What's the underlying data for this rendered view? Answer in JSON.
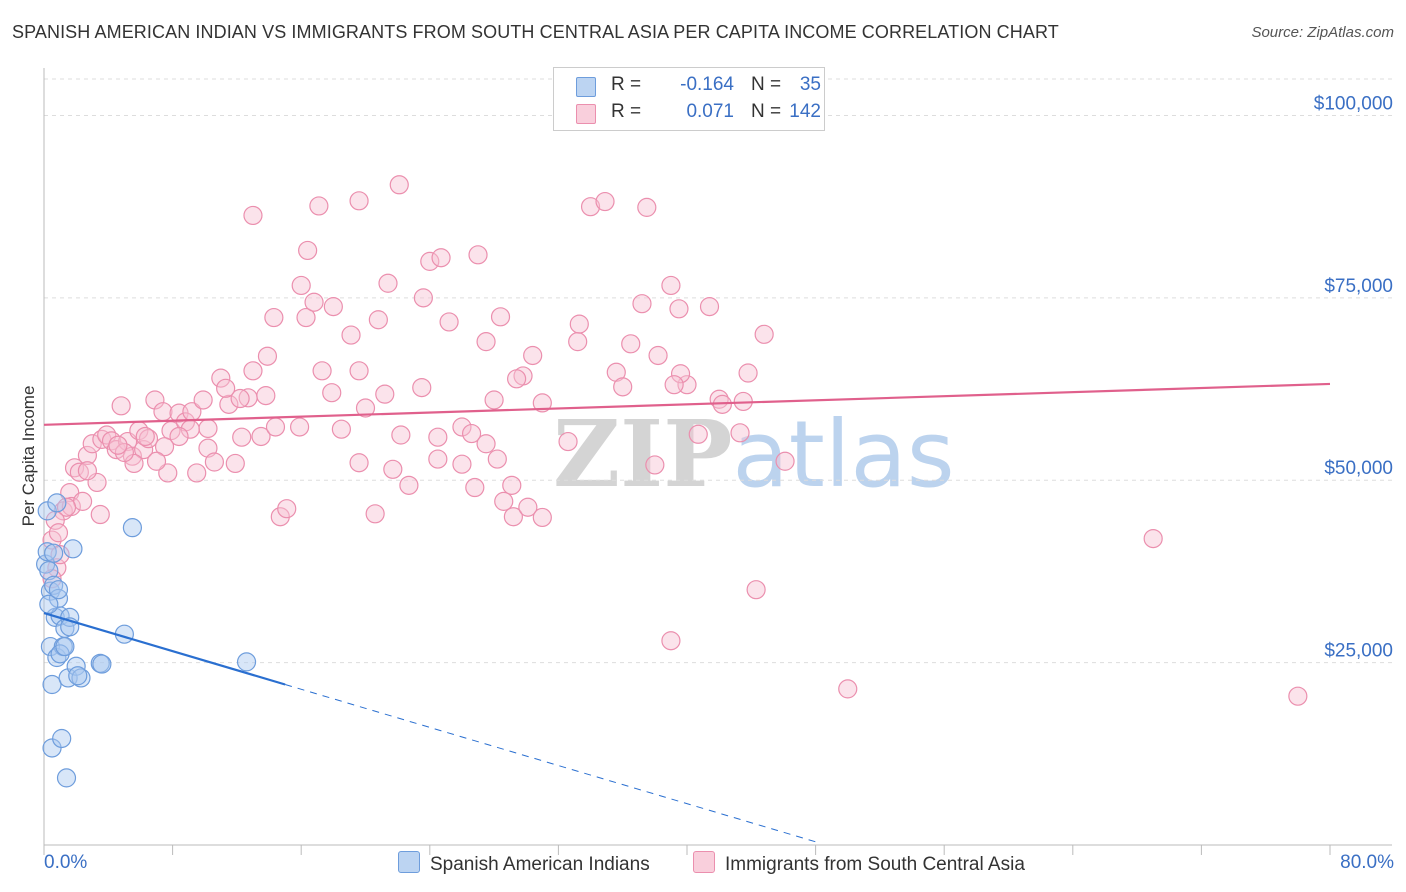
{
  "header": {
    "title": "SPANISH AMERICAN INDIAN VS IMMIGRANTS FROM SOUTH CENTRAL ASIA PER CAPITA INCOME CORRELATION CHART",
    "source": "Source: ZipAtlas.com"
  },
  "legend": {
    "rows": [
      {
        "r_label": "R =",
        "r_value": "-0.164",
        "n_label": "N =",
        "n_value": "35"
      },
      {
        "r_label": "R =",
        "r_value": "0.071",
        "n_label": "N =",
        "n_value": "142"
      }
    ]
  },
  "watermark": {
    "zip": "ZIP",
    "atlas": "atlas"
  },
  "colors": {
    "blue_fill": "#a9c8ef",
    "blue_stroke": "#6e9ddc",
    "blue_line": "#2a6fd0",
    "pink_fill": "#f7c1d2",
    "pink_stroke": "#eb8fae",
    "pink_line": "#e0608c",
    "tick_text": "#3a6fc4",
    "grid": "#dddddd"
  },
  "chart_data": {
    "type": "scatter",
    "title": "SPANISH AMERICAN INDIAN VS IMMIGRANTS FROM SOUTH CENTRAL ASIA PER CAPITA INCOME CORRELATION CHART",
    "xlabel": "",
    "ylabel": "Per Capita Income",
    "xlim": [
      0,
      80
    ],
    "ylim": [
      0,
      105000
    ],
    "x_tick_labels": [
      "0.0%",
      "80.0%"
    ],
    "y_ticks": [
      25000,
      50000,
      75000,
      100000
    ],
    "y_tick_labels": [
      "$25,000",
      "$50,000",
      "$75,000",
      "$100,000"
    ],
    "grid": true,
    "series": [
      {
        "name": "Spanish American Indians",
        "color": "blue",
        "r": -0.164,
        "n": 35,
        "trend": {
          "x0": 0,
          "y0": 31800,
          "x1": 15,
          "y1": 22000,
          "dash_to_x": 48
        },
        "points": [
          [
            0.1,
            38500
          ],
          [
            0.2,
            45800
          ],
          [
            0.2,
            40200
          ],
          [
            0.3,
            37600
          ],
          [
            0.4,
            34800
          ],
          [
            0.4,
            27200
          ],
          [
            0.5,
            22000
          ],
          [
            0.5,
            13300
          ],
          [
            0.6,
            35600
          ],
          [
            0.7,
            31200
          ],
          [
            0.8,
            46900
          ],
          [
            0.8,
            25700
          ],
          [
            0.9,
            33800
          ],
          [
            1.0,
            31400
          ],
          [
            1.1,
            14600
          ],
          [
            1.2,
            27200
          ],
          [
            1.3,
            29700
          ],
          [
            1.4,
            9200
          ],
          [
            1.5,
            22900
          ],
          [
            1.6,
            31200
          ],
          [
            1.6,
            29900
          ],
          [
            1.8,
            40600
          ],
          [
            2.0,
            24500
          ],
          [
            2.3,
            22900
          ],
          [
            3.5,
            24900
          ],
          [
            3.6,
            24800
          ],
          [
            5.0,
            28900
          ],
          [
            5.5,
            43500
          ],
          [
            12.6,
            25100
          ],
          [
            0.3,
            33000
          ],
          [
            0.6,
            40000
          ],
          [
            1.0,
            26200
          ],
          [
            0.9,
            35000
          ],
          [
            1.3,
            27200
          ],
          [
            2.1,
            23200
          ]
        ]
      },
      {
        "name": "Immigrants from South Central Asia",
        "color": "pink",
        "r": 0.071,
        "n": 142,
        "trend": {
          "x0": 0,
          "y0": 57600,
          "x1": 80,
          "y1": 63200
        },
        "points": [
          [
            0.5,
            41800
          ],
          [
            0.8,
            38000
          ],
          [
            1.0,
            39800
          ],
          [
            1.2,
            45800
          ],
          [
            1.6,
            48300
          ],
          [
            1.7,
            46400
          ],
          [
            1.9,
            51700
          ],
          [
            2.2,
            51100
          ],
          [
            2.4,
            47100
          ],
          [
            2.7,
            53400
          ],
          [
            3.0,
            55000
          ],
          [
            3.3,
            49700
          ],
          [
            3.5,
            45300
          ],
          [
            3.6,
            55600
          ],
          [
            3.9,
            56200
          ],
          [
            4.2,
            55400
          ],
          [
            4.5,
            54200
          ],
          [
            4.8,
            60200
          ],
          [
            5.2,
            55300
          ],
          [
            5.5,
            53300
          ],
          [
            5.9,
            56800
          ],
          [
            6.2,
            54200
          ],
          [
            6.5,
            55700
          ],
          [
            6.9,
            61000
          ],
          [
            7.4,
            59400
          ],
          [
            7.7,
            51000
          ],
          [
            7.9,
            56800
          ],
          [
            8.4,
            59200
          ],
          [
            8.8,
            58000
          ],
          [
            9.2,
            59400
          ],
          [
            9.5,
            51000
          ],
          [
            9.9,
            61000
          ],
          [
            10.2,
            54400
          ],
          [
            10.6,
            52500
          ],
          [
            11.0,
            64000
          ],
          [
            11.5,
            60400
          ],
          [
            11.9,
            52300
          ],
          [
            12.3,
            55900
          ],
          [
            12.7,
            61300
          ],
          [
            13.0,
            65000
          ],
          [
            13.5,
            56000
          ],
          [
            13.9,
            67000
          ],
          [
            14.3,
            72300
          ],
          [
            14.7,
            45000
          ],
          [
            15.1,
            46100
          ],
          [
            15.9,
            57300
          ],
          [
            16.3,
            72300
          ],
          [
            16.8,
            74400
          ],
          [
            17.3,
            65000
          ],
          [
            17.9,
            62000
          ],
          [
            18.5,
            57000
          ],
          [
            19.1,
            69900
          ],
          [
            19.6,
            52400
          ],
          [
            20.0,
            59900
          ],
          [
            20.6,
            45400
          ],
          [
            21.2,
            61800
          ],
          [
            21.7,
            51500
          ],
          [
            22.2,
            56200
          ],
          [
            22.7,
            49300
          ],
          [
            23.5,
            62700
          ],
          [
            24.5,
            52900
          ],
          [
            25.2,
            71700
          ],
          [
            26.0,
            57300
          ],
          [
            26.6,
            56400
          ],
          [
            27.0,
            80900
          ],
          [
            27.5,
            69000
          ],
          [
            28.0,
            61000
          ],
          [
            28.6,
            47100
          ],
          [
            29.2,
            45000
          ],
          [
            29.8,
            64300
          ],
          [
            30.4,
            67100
          ],
          [
            31.0,
            60600
          ],
          [
            32.6,
            55300
          ],
          [
            33.2,
            69000
          ],
          [
            34.0,
            87500
          ],
          [
            34.9,
            88200
          ],
          [
            35.6,
            64800
          ],
          [
            36.0,
            62800
          ],
          [
            37.2,
            74200
          ],
          [
            38.0,
            52100
          ],
          [
            39.0,
            28000
          ],
          [
            40.0,
            63100
          ],
          [
            40.7,
            56300
          ],
          [
            41.4,
            73800
          ],
          [
            42.0,
            61100
          ],
          [
            43.5,
            60800
          ],
          [
            44.3,
            35000
          ],
          [
            37.5,
            87400
          ],
          [
            13.0,
            86300
          ],
          [
            17.1,
            87600
          ],
          [
            19.6,
            88300
          ],
          [
            22.1,
            90500
          ],
          [
            24.0,
            80000
          ],
          [
            24.7,
            80500
          ],
          [
            16.4,
            81500
          ],
          [
            16.0,
            76700
          ],
          [
            18.0,
            73800
          ],
          [
            21.4,
            77000
          ],
          [
            20.8,
            72000
          ],
          [
            23.6,
            75000
          ],
          [
            28.4,
            72400
          ],
          [
            33.3,
            71400
          ],
          [
            36.5,
            68700
          ],
          [
            38.2,
            67100
          ],
          [
            39.0,
            76700
          ],
          [
            39.5,
            73500
          ],
          [
            39.6,
            64600
          ],
          [
            39.2,
            63100
          ],
          [
            19.6,
            65000
          ],
          [
            29.4,
            63900
          ],
          [
            27.5,
            55000
          ],
          [
            26.0,
            52200
          ],
          [
            24.5,
            55900
          ],
          [
            26.8,
            49000
          ],
          [
            28.2,
            52900
          ],
          [
            29.1,
            49300
          ],
          [
            30.1,
            46300
          ],
          [
            31.0,
            44900
          ],
          [
            14.4,
            57300
          ],
          [
            13.8,
            61600
          ],
          [
            12.2,
            61200
          ],
          [
            11.3,
            62600
          ],
          [
            10.2,
            57100
          ],
          [
            9.1,
            57000
          ],
          [
            8.4,
            56000
          ],
          [
            7.5,
            54600
          ],
          [
            7.0,
            52600
          ],
          [
            6.3,
            56000
          ],
          [
            5.6,
            52300
          ],
          [
            5.0,
            53800
          ],
          [
            4.6,
            54800
          ],
          [
            2.7,
            51300
          ],
          [
            1.4,
            46300
          ],
          [
            0.7,
            44500
          ],
          [
            0.5,
            36500
          ],
          [
            0.9,
            42800
          ],
          [
            46.1,
            52600
          ],
          [
            42.2,
            60400
          ],
          [
            69.0,
            42000
          ],
          [
            43.3,
            56500
          ],
          [
            43.8,
            64700
          ],
          [
            44.8,
            70000
          ],
          [
            50.0,
            21400
          ],
          [
            78.0,
            20400
          ]
        ]
      }
    ]
  },
  "bottom_legend": {
    "items": [
      {
        "label": "Spanish American Indians"
      },
      {
        "label": "Immigrants from South Central Asia"
      }
    ]
  }
}
